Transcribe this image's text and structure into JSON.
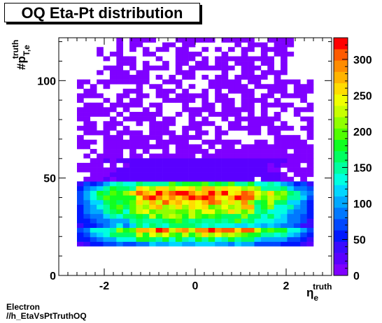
{
  "page": {
    "title": "OQ Eta-Pt distribution",
    "footer_line1": "Electron",
    "footer_line2": "//h_EtaVsPtTruthOQ"
  },
  "chart_data": {
    "type": "heatmap",
    "title": "OQ Eta-Pt distribution",
    "xlabel": "η_e^truth",
    "ylabel": "#p_T,e^truth",
    "xlim": [
      -3.0,
      3.0
    ],
    "ylim": [
      0,
      122
    ],
    "xticks": [
      -2,
      0,
      2
    ],
    "yticks": [
      0,
      50,
      100
    ],
    "zlim": [
      0,
      330
    ],
    "zticks": [
      0,
      50,
      100,
      150,
      200,
      250,
      300
    ],
    "colormap": [
      "#7f00ff",
      "#5a00ff",
      "#3a0aff",
      "#0018ff",
      "#0048ff",
      "#0078ff",
      "#00a8ff",
      "#00d6ff",
      "#00ffe0",
      "#00ffa0",
      "#00ff60",
      "#10ff20",
      "#50ff00",
      "#90ff00",
      "#c8ff00",
      "#f0ff00",
      "#ffdc00",
      "#ffb400",
      "#ff8c00",
      "#ff5a00",
      "#ff0000"
    ],
    "bins": {
      "eta_bins": 36,
      "eta_range": [
        -2.6,
        2.6
      ],
      "pt_bins": 45,
      "pt_range": [
        15,
        122
      ]
    },
    "density": {
      "peak_count": 310,
      "peak_pt": 42,
      "core_pt_range": [
        25,
        48
      ],
      "tail_counts": {
        "pt_50_60": 25,
        "pt_60_70": 12,
        "pt_70_100": 5,
        "pt_100_122": 1
      },
      "eta_falloff_beyond": 1.2
    },
    "grid": false,
    "legend": "colorbar-right"
  }
}
